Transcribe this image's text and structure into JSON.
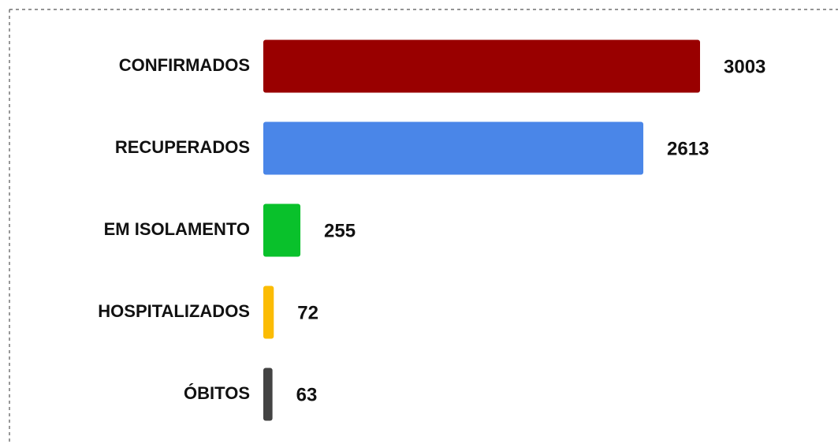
{
  "chart_data": {
    "type": "bar",
    "orientation": "horizontal",
    "categories": [
      "CONFIRMADOS",
      "RECUPERADOS",
      "EM ISOLAMENTO",
      "HOSPITALIZADOS",
      "ÓBITOS"
    ],
    "values": [
      3003,
      2613,
      255,
      72,
      63
    ],
    "colors": [
      "#990000",
      "#4a86e8",
      "#09c12b",
      "#fbbc04",
      "#434343"
    ]
  }
}
